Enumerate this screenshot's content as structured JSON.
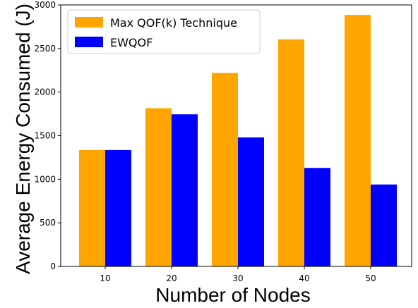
{
  "chart_data": {
    "type": "bar",
    "title": "",
    "xlabel": "Number of Nodes",
    "ylabel": "Average Energy Consumed (J)",
    "categories": [
      "10",
      "20",
      "30",
      "40",
      "50"
    ],
    "ylim": [
      0,
      3000
    ],
    "yticks": [
      0,
      500,
      1000,
      1500,
      2000,
      2500,
      3000
    ],
    "grid": false,
    "legend_position": "top-left",
    "series": [
      {
        "name": "Max QOF(k) Technique",
        "color": "#ffa500",
        "values": [
          1335,
          1815,
          2220,
          2605,
          2885
        ]
      },
      {
        "name": "EWQOF",
        "color": "#0000ff",
        "values": [
          1335,
          1745,
          1480,
          1130,
          940
        ]
      }
    ]
  }
}
